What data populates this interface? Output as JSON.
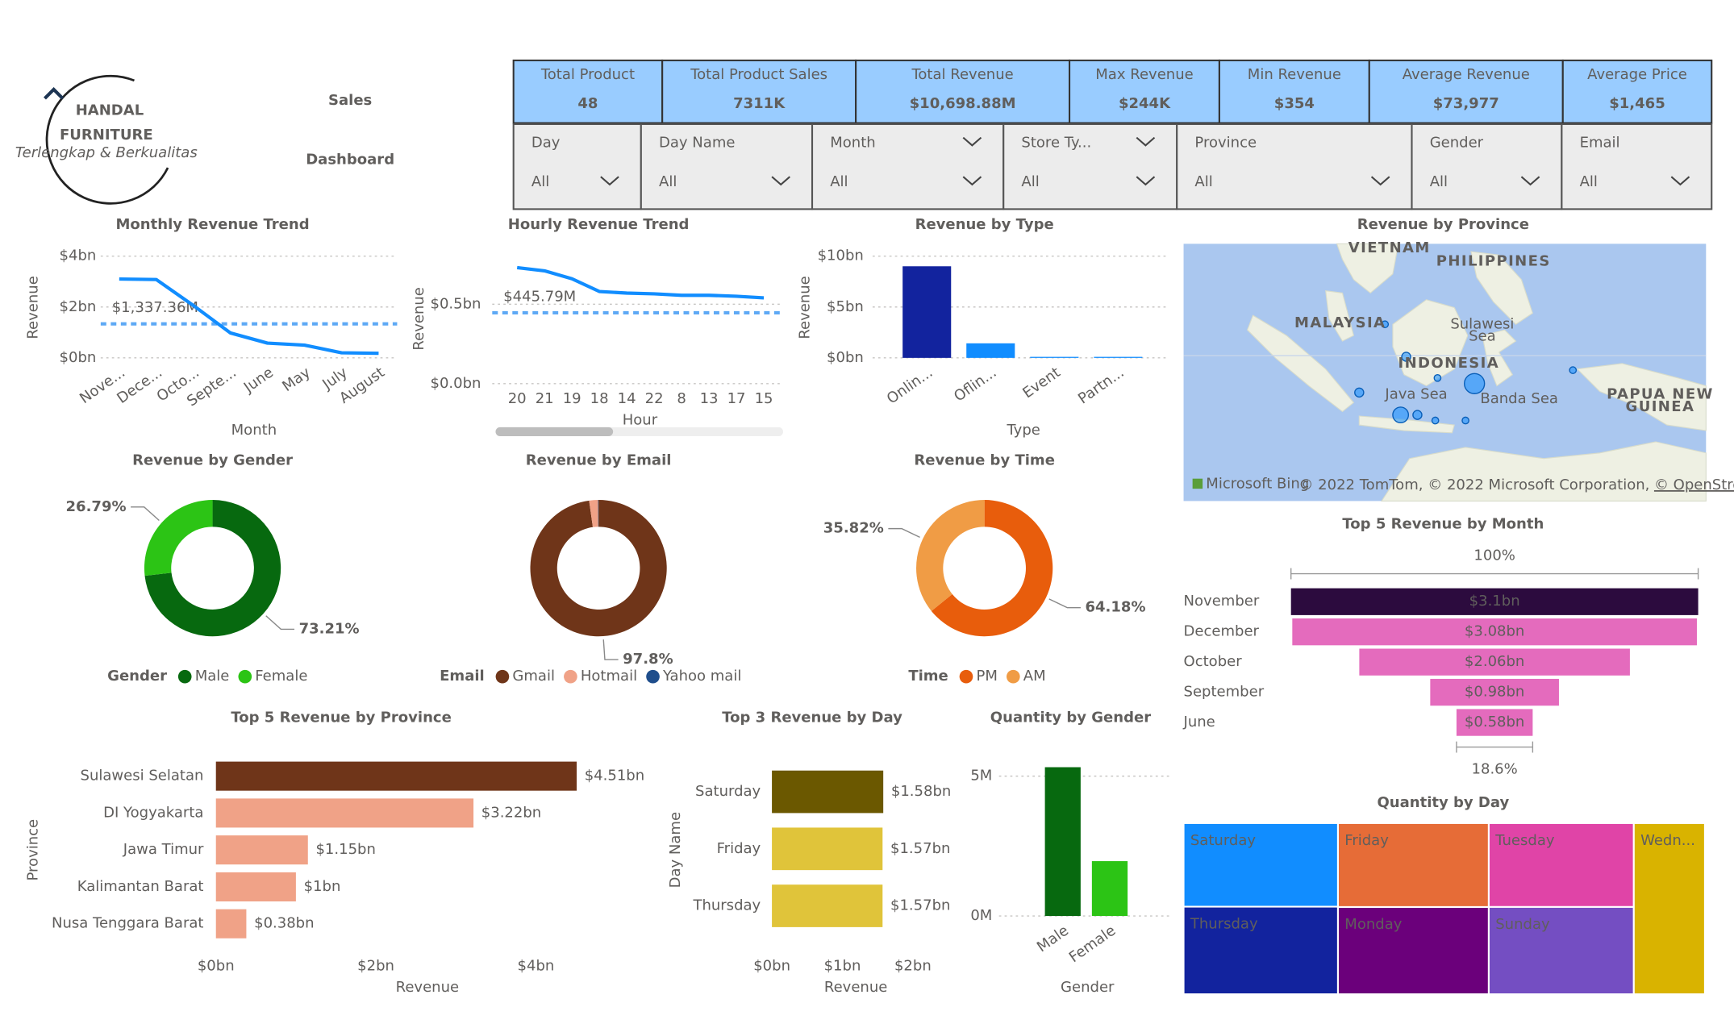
{
  "header": {
    "brand": "HANDAL",
    "brand_sub": "FURNITURE",
    "tagline": "Terlengkap & Berkualitas",
    "title_lines": [
      "Sales",
      "Dashboard"
    ]
  },
  "kpis": [
    {
      "label": "Total Product",
      "value": "48"
    },
    {
      "label": "Total Product Sales",
      "value": "7311K"
    },
    {
      "label": "Total Revenue",
      "value": "$10,698.88M"
    },
    {
      "label": "Max Revenue",
      "value": "$244K"
    },
    {
      "label": "Min Revenue",
      "value": "$354"
    },
    {
      "label": "Average Revenue",
      "value": "$73,977"
    },
    {
      "label": "Average Price",
      "value": "$1,465"
    }
  ],
  "slicers": [
    {
      "label": "Day",
      "value": "All"
    },
    {
      "label": "Day Name",
      "value": "All"
    },
    {
      "label": "Month",
      "value": "All"
    },
    {
      "label": "Store Ty...",
      "value": "All"
    },
    {
      "label": "Province",
      "value": "All"
    },
    {
      "label": "Gender",
      "value": "All"
    },
    {
      "label": "Email",
      "value": "All"
    }
  ],
  "chart_data": [
    {
      "type": "line",
      "title": "Monthly Revenue Trend",
      "x_label": "Month",
      "y_label": "Revenue",
      "categories": [
        "Nove...",
        "Dece...",
        "Octo...",
        "Septe...",
        "June",
        "May",
        "July",
        "August"
      ],
      "values": [
        3.1,
        3.08,
        2.06,
        0.98,
        0.58,
        0.5,
        0.2,
        0.18
      ],
      "color": "#118dff",
      "ylim": [
        0,
        4
      ],
      "yticks": [
        {
          "value": 0,
          "label": "$0bn"
        },
        {
          "value": 2,
          "label": "$2bn"
        },
        {
          "value": 4,
          "label": "$4bn"
        }
      ],
      "reference_line": {
        "value": 1.33736,
        "label": "$1,337.36M",
        "color": "#5ea9f5"
      }
    },
    {
      "type": "line",
      "title": "Hourly Revenue Trend",
      "x_label": "Hour",
      "y_label": "Revenue",
      "categories": [
        "20",
        "21",
        "19",
        "18",
        "14",
        "22",
        "8",
        "13",
        "17",
        "15"
      ],
      "values": [
        0.73,
        0.71,
        0.66,
        0.58,
        0.57,
        0.565,
        0.556,
        0.556,
        0.55,
        0.54
      ],
      "color": "#118dff",
      "ylim": [
        0,
        0.8
      ],
      "yticks": [
        {
          "value": 0,
          "label": "$0.0bn"
        },
        {
          "value": 0.5,
          "label": "$0.5bn"
        }
      ],
      "reference_line": {
        "value": 0.44579,
        "label": "$445.79M",
        "color": "#5ea9f5"
      }
    },
    {
      "type": "bar",
      "title": "Revenue by Type",
      "x_label": "Type",
      "y_label": "Revenue",
      "categories": [
        "Onlin...",
        "Oflin...",
        "Event",
        "Partn..."
      ],
      "values": [
        9.0,
        1.43,
        0.1,
        0.1
      ],
      "colors": [
        "#12239e",
        "#118dff",
        "#118dff",
        "#118dff"
      ],
      "ylim": [
        0,
        10
      ],
      "yticks": [
        {
          "value": 0,
          "label": "$0bn"
        },
        {
          "value": 5,
          "label": "$5bn"
        },
        {
          "value": 10,
          "label": "$10bn"
        }
      ]
    },
    {
      "type": "map",
      "title": "Revenue by Province",
      "places": [
        "VIETNAM",
        "PHILIPPINES",
        "MALAYSIA",
        "Sulawesi",
        "Sea",
        "INDONESIA",
        "Java Sea",
        "Banda Sea",
        "PAPUA NEW",
        "GUINEA"
      ],
      "provider": "Microsoft Bing",
      "credits": "© 2022 TomTom, © 2022 Microsoft Corporation,",
      "credits_link": "© OpenStreetMap"
    },
    {
      "type": "donut",
      "title": "Revenue by Gender",
      "legend_title": "Gender",
      "categories": [
        "Male",
        "Female"
      ],
      "values": [
        73.21,
        26.79
      ],
      "value_labels": [
        "73.21%",
        "26.79%"
      ],
      "colors": [
        "#07690f",
        "#2cc415"
      ]
    },
    {
      "type": "donut",
      "title": "Revenue by Email",
      "legend_title": "Email",
      "categories": [
        "Gmail",
        "Hotmail",
        "Yahoo mail"
      ],
      "values": [
        97.8,
        2.1,
        0.1
      ],
      "value_labels": [
        "97.8%",
        null,
        null
      ],
      "colors": [
        "#6f3519",
        "#f0a287",
        "#1f4e8c"
      ]
    },
    {
      "type": "donut",
      "title": "Revenue by Time",
      "legend_title": "Time",
      "categories": [
        "PM",
        "AM"
      ],
      "values": [
        64.18,
        35.82
      ],
      "value_labels": [
        "64.18%",
        "35.82%"
      ],
      "colors": [
        "#e85d0c",
        "#f09c45"
      ]
    },
    {
      "type": "funnel",
      "title": "Top 5 Revenue by Month",
      "categories": [
        "November",
        "December",
        "October",
        "September",
        "June"
      ],
      "values": [
        3.1,
        3.08,
        2.06,
        0.98,
        0.58
      ],
      "value_labels": [
        "$3.1bn",
        "$3.08bn",
        "$2.06bn",
        "$0.98bn",
        "$0.58bn"
      ],
      "colors": [
        "#2c0b3e",
        "#e46bbd",
        "#e46bbd",
        "#e46bbd",
        "#e46bbd"
      ],
      "top_label": "100%",
      "bottom_label": "18.6%"
    },
    {
      "type": "hbar",
      "title": "Top 5 Revenue by Province",
      "x_label": "Revenue",
      "y_label": "Province",
      "categories": [
        "Sulawesi Selatan",
        "DI Yogyakarta",
        "Jawa Timur",
        "Kalimantan Barat",
        "Nusa Tenggara Barat"
      ],
      "values": [
        4.51,
        3.22,
        1.15,
        1,
        0.38
      ],
      "value_labels": [
        "$4.51bn",
        "$3.22bn",
        "$1.15bn",
        "$1bn",
        "$0.38bn"
      ],
      "colors": [
        "#6f3519",
        "#f0a287",
        "#f0a287",
        "#f0a287",
        "#f0a287"
      ],
      "xlim": [
        0,
        5
      ],
      "xticks": [
        {
          "value": 0,
          "label": "$0bn"
        },
        {
          "value": 2,
          "label": "$2bn"
        },
        {
          "value": 4,
          "label": "$4bn"
        }
      ]
    },
    {
      "type": "hbar",
      "title": "Top 3 Revenue by Day",
      "x_label": "Revenue",
      "y_label": "Day Name",
      "categories": [
        "Saturday",
        "Friday",
        "Thursday"
      ],
      "values": [
        1.58,
        1.57,
        1.57
      ],
      "value_labels": [
        "$1.58bn",
        "$1.57bn",
        "$1.57bn"
      ],
      "colors": [
        "#6b5800",
        "#e0c43a",
        "#e0c43a"
      ],
      "xlim": [
        0,
        2.5
      ],
      "xticks": [
        {
          "value": 0,
          "label": "$0bn"
        },
        {
          "value": 1,
          "label": "$1bn"
        },
        {
          "value": 2,
          "label": "$2bn"
        }
      ]
    },
    {
      "type": "bar",
      "title": "Quantity by Gender",
      "x_label": "Gender",
      "categories": [
        "Male",
        "Female"
      ],
      "values": [
        5.32,
        1.96
      ],
      "colors": [
        "#07690f",
        "#2cc415"
      ],
      "ylim": [
        0,
        5.5
      ],
      "yticks": [
        {
          "value": 0,
          "label": "0M"
        },
        {
          "value": 5,
          "label": "5M"
        }
      ]
    },
    {
      "type": "treemap",
      "title": "Quantity by Day",
      "categories": [
        "Saturday",
        "Thursday",
        "Friday",
        "Monday",
        "Tuesday",
        "Sunday",
        "Wedn..."
      ],
      "values": [
        1.05,
        1.1,
        1.03,
        1.07,
        0.99,
        1.03,
        0.99
      ],
      "colors": [
        "#118dff",
        "#12239e",
        "#e66c37",
        "#6b007b",
        "#e044a7",
        "#744ec2",
        "#d9b300"
      ]
    }
  ]
}
